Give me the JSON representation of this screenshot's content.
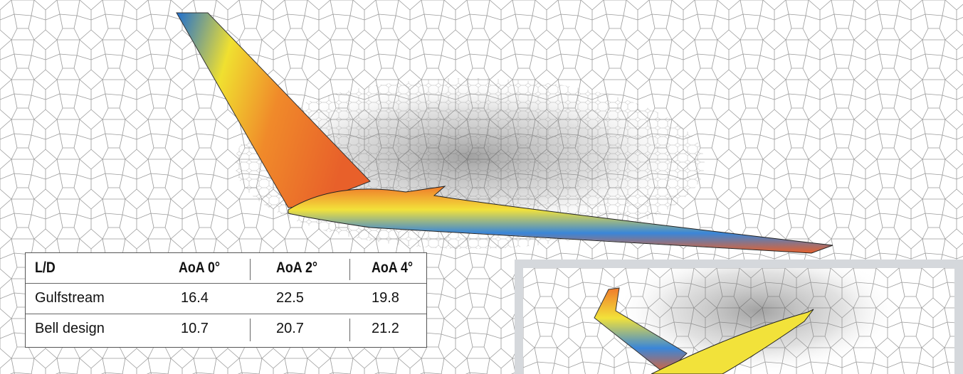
{
  "table": {
    "header": [
      "L/D",
      "AoA 0°",
      "AoA 2°",
      "AoA 4°"
    ],
    "rows": [
      [
        "Gulfstream",
        16.4,
        22.5,
        19.8
      ],
      [
        "Bell design",
        10.7,
        20.7,
        21.2
      ]
    ]
  }
}
